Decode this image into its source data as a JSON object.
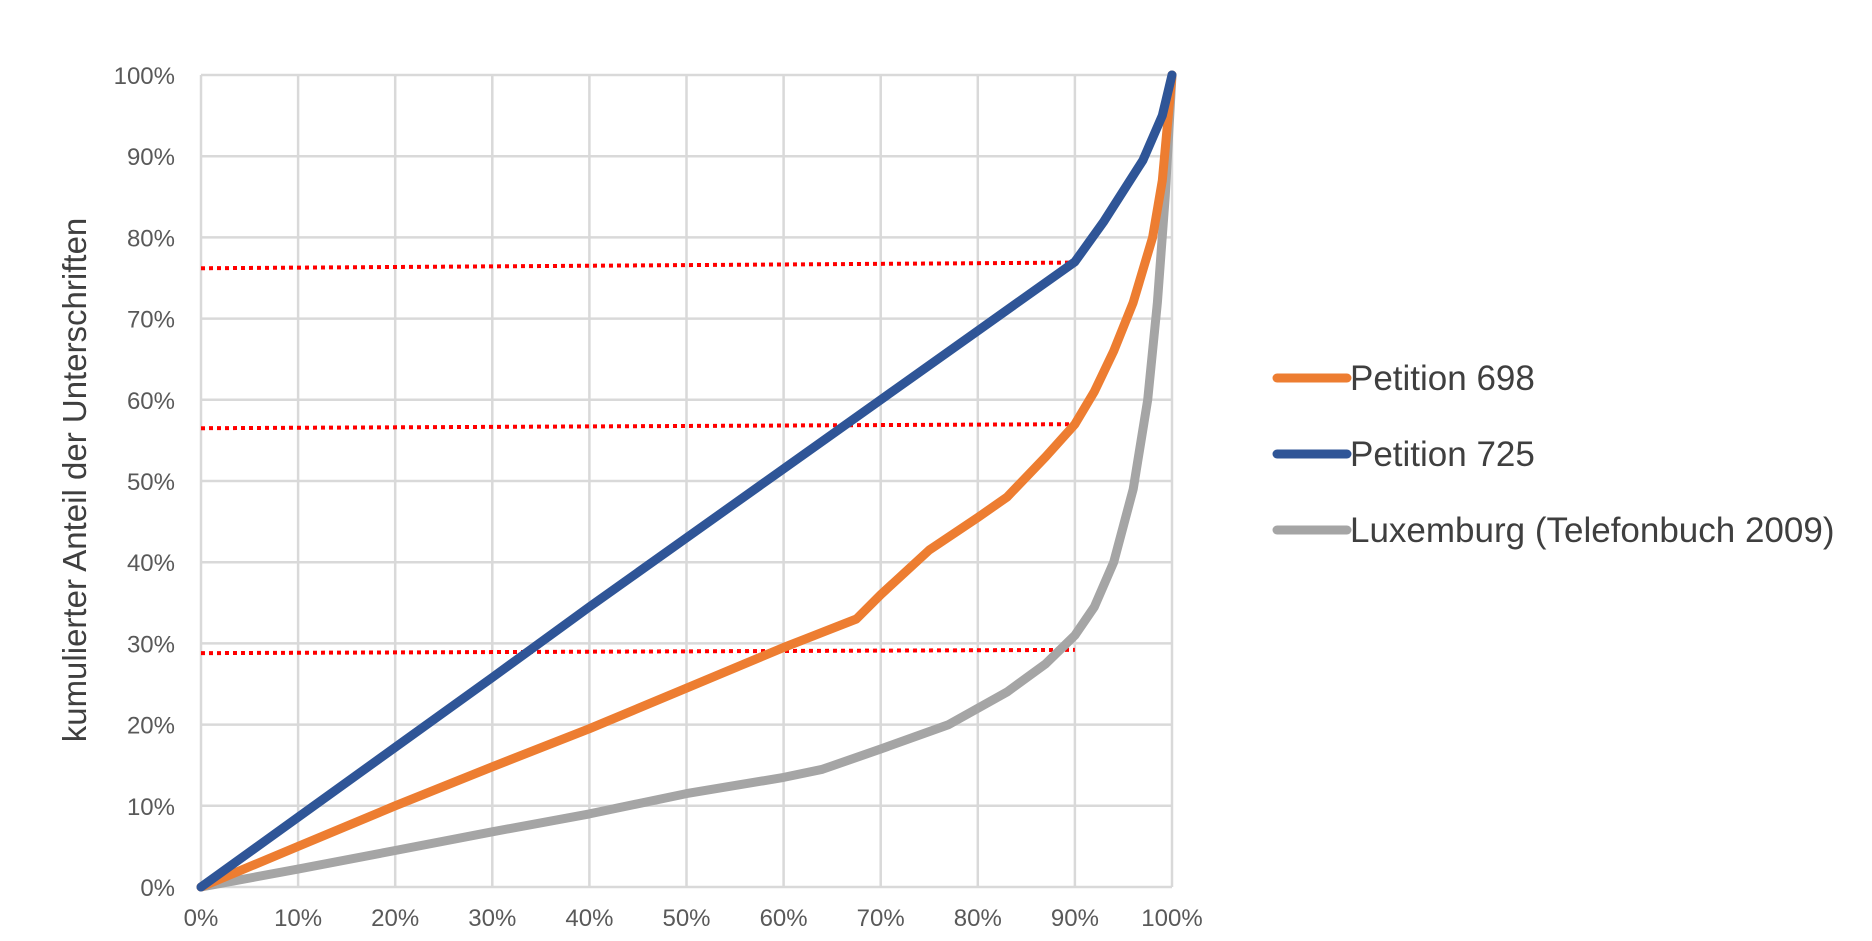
{
  "chart_data": {
    "type": "line",
    "title": "",
    "xlabel": "",
    "ylabel": "kumulierter Anteil der Unterschriften",
    "xlim": [
      0,
      100
    ],
    "ylim": [
      0,
      100
    ],
    "x_ticks": [
      "0%",
      "10%",
      "20%",
      "30%",
      "40%",
      "50%",
      "60%",
      "70%",
      "80%",
      "90%",
      "100%"
    ],
    "y_ticks": [
      "0%",
      "10%",
      "20%",
      "30%",
      "40%",
      "50%",
      "60%",
      "70%",
      "80%",
      "90%",
      "100%"
    ],
    "grid": true,
    "legend_position": "right",
    "series": [
      {
        "name": "Petition 698",
        "color": "#ED7D31",
        "points": [
          [
            0,
            0
          ],
          [
            10,
            5
          ],
          [
            20,
            10
          ],
          [
            30,
            14.8
          ],
          [
            40,
            19.5
          ],
          [
            50,
            24.5
          ],
          [
            60,
            29.5
          ],
          [
            67.5,
            33
          ],
          [
            70,
            36
          ],
          [
            75,
            41.5
          ],
          [
            80,
            45.5
          ],
          [
            83,
            48
          ],
          [
            87,
            53
          ],
          [
            90,
            57
          ],
          [
            92,
            61
          ],
          [
            94,
            66
          ],
          [
            96,
            72
          ],
          [
            98,
            80
          ],
          [
            99,
            87
          ],
          [
            100,
            100
          ]
        ]
      },
      {
        "name": "Petition 725",
        "color": "#2F5597",
        "points": [
          [
            0,
            0
          ],
          [
            10,
            8.6
          ],
          [
            20,
            17.2
          ],
          [
            30,
            25.8
          ],
          [
            40,
            34.5
          ],
          [
            50,
            43
          ],
          [
            60,
            51.5
          ],
          [
            70,
            60
          ],
          [
            80,
            68.5
          ],
          [
            90,
            77
          ],
          [
            93,
            82
          ],
          [
            97,
            89.5
          ],
          [
            99,
            95
          ],
          [
            100,
            100
          ]
        ]
      },
      {
        "name": "Luxemburg (Telefonbuch 2009)",
        "color": "#A5A5A5",
        "points": [
          [
            0,
            0
          ],
          [
            10,
            2.2
          ],
          [
            20,
            4.5
          ],
          [
            30,
            6.8
          ],
          [
            40,
            9
          ],
          [
            50,
            11.5
          ],
          [
            60,
            13.5
          ],
          [
            64,
            14.5
          ],
          [
            70,
            17
          ],
          [
            77,
            20
          ],
          [
            83,
            24
          ],
          [
            87,
            27.5
          ],
          [
            90,
            31
          ],
          [
            92,
            34.5
          ],
          [
            94,
            40
          ],
          [
            96,
            49
          ],
          [
            97.5,
            60
          ],
          [
            98.5,
            72
          ],
          [
            99.3,
            85
          ],
          [
            100,
            100
          ]
        ]
      }
    ],
    "reference_lines": [
      {
        "name": "Petition 725",
        "color": "#FF0000",
        "y_start": 76.2,
        "y_end": 76.9,
        "x_end": 90
      },
      {
        "name": "Petition 698",
        "color": "#FF0000",
        "y_start": 56.5,
        "y_end": 57,
        "x_end": 90
      },
      {
        "name": "Luxemburg (Telefonbuch 2009)",
        "color": "#FF0000",
        "y_start": 28.8,
        "y_end": 29.2,
        "x_end": 90
      }
    ],
    "grid_color": "#D9D9D9",
    "axis_color": "#D9D9D9"
  }
}
